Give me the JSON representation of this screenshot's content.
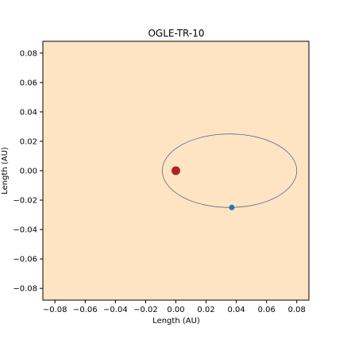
{
  "chart_data": {
    "type": "scatter",
    "title": "OGLE-TR-10",
    "xlabel": "Length (AU)",
    "ylabel": "Length (AU)",
    "xlim": [
      -0.088,
      0.088
    ],
    "ylim": [
      -0.088,
      0.088
    ],
    "grid": false,
    "xticks": [
      -0.08,
      -0.06,
      -0.04,
      -0.02,
      0.0,
      0.02,
      0.04,
      0.06,
      0.08
    ],
    "yticks": [
      -0.08,
      -0.06,
      -0.04,
      -0.02,
      0.0,
      0.02,
      0.04,
      0.06,
      0.08
    ],
    "xtick_labels": [
      "−0.08",
      "−0.06",
      "−0.04",
      "−0.02",
      "0.00",
      "0.02",
      "0.04",
      "0.06",
      "0.08"
    ],
    "ytick_labels": [
      "−0.08",
      "−0.06",
      "−0.04",
      "−0.02",
      "0.00",
      "0.02",
      "0.04",
      "0.06",
      "0.08"
    ],
    "star": {
      "x": 0.0,
      "y": 0.0,
      "color": "#b22222"
    },
    "planet": {
      "x": 0.037,
      "y": -0.025,
      "color": "#1f77b4"
    },
    "orbit": {
      "center_x": 0.0355,
      "center_y": 0.0,
      "semi_major": 0.0445,
      "semi_minor": 0.025,
      "color": "#5a6e8c"
    },
    "colors": {
      "plot_background": "#ffe4c4"
    }
  }
}
